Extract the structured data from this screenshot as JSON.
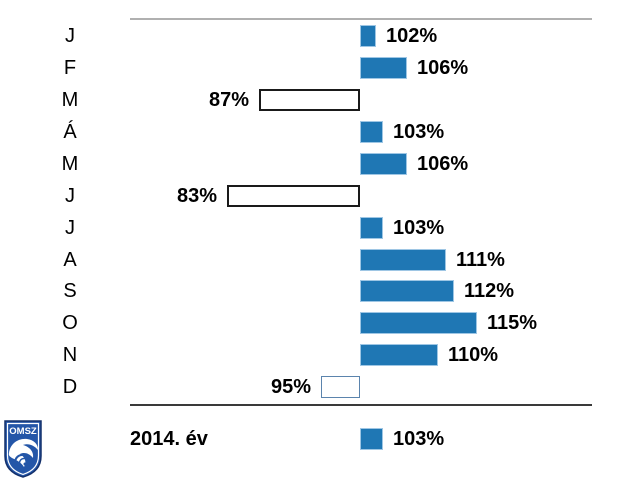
{
  "chart_data": {
    "type": "bar",
    "orientation": "horizontal",
    "baseline_value": 100,
    "unit": "%",
    "categories": [
      "J",
      "F",
      "M",
      "Á",
      "M",
      "J",
      "J",
      "A",
      "S",
      "O",
      "N",
      "D"
    ],
    "values": [
      102,
      106,
      87,
      103,
      106,
      83,
      103,
      111,
      112,
      115,
      110,
      95
    ],
    "value_labels": [
      "102%",
      "106%",
      "87%",
      "103%",
      "106%",
      "83%",
      "103%",
      "111%",
      "112%",
      "115%",
      "110%",
      "95%"
    ],
    "bar_styles": [
      "filled",
      "filled",
      "outline-dark",
      "filled",
      "filled",
      "outline-dark",
      "filled",
      "filled",
      "filled",
      "filled",
      "filled",
      "outline-blue"
    ],
    "summary": {
      "label": "2014. év",
      "value": 103,
      "value_label": "103%",
      "bar_style": "filled"
    },
    "layout_hints": {
      "grid": false,
      "legend": false,
      "top_axis_line": true,
      "bottom_axis_line": true
    },
    "colors": {
      "bar_fill": "#1f77b4",
      "bar_fill_border": "#9ec6e4",
      "outline_dark": "#1a1a1a",
      "outline_blue": "#5b84ad",
      "top_line": "#b0b0b0",
      "bottom_line": "#3a3a3a",
      "text": "#000000"
    }
  },
  "logo": {
    "text": "OMSZ",
    "shield_fill": "#2456a8",
    "shield_border": "#14306b"
  }
}
